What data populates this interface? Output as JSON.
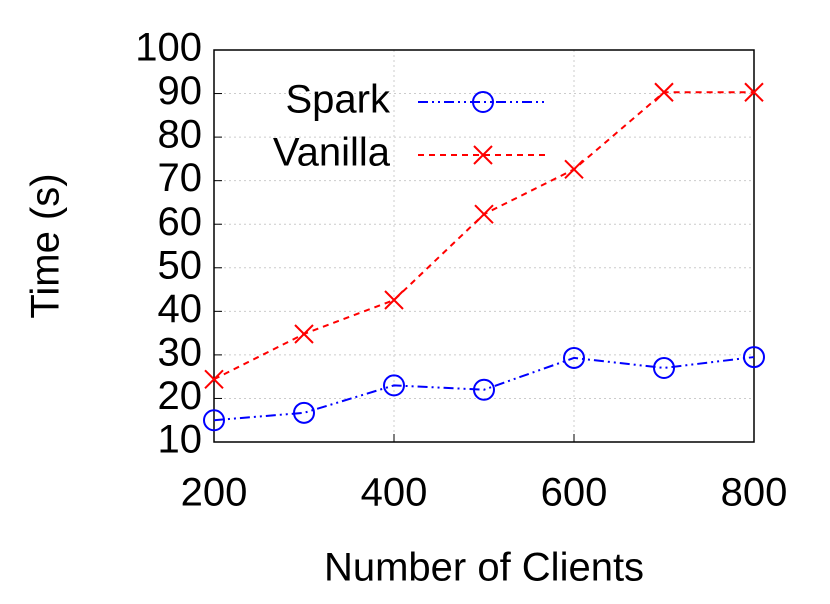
{
  "chart_data": {
    "type": "line",
    "x_label": "Number of Clients",
    "y_label": "Time (s)",
    "x": [
      200,
      300,
      400,
      500,
      600,
      700,
      800
    ],
    "series": [
      {
        "name": "Spark",
        "color": "#0000ff",
        "marker": "circle",
        "dash": "10 4 2 4 2 4",
        "values": [
          15,
          16.7,
          23,
          22,
          29.3,
          27,
          29.5
        ]
      },
      {
        "name": "Vanilla",
        "color": "#ff0000",
        "marker": "x",
        "dash": "6 5",
        "values": [
          24.4,
          34.8,
          42.6,
          62.3,
          72.6,
          90.3,
          90.3
        ]
      }
    ],
    "xlim": [
      200,
      800
    ],
    "xticks": [
      200,
      400,
      600,
      800
    ],
    "ylim": [
      10,
      100
    ],
    "yticks": [
      10,
      20,
      30,
      40,
      50,
      60,
      70,
      80,
      90,
      100
    ],
    "grid": true,
    "legend": "upper-left"
  }
}
